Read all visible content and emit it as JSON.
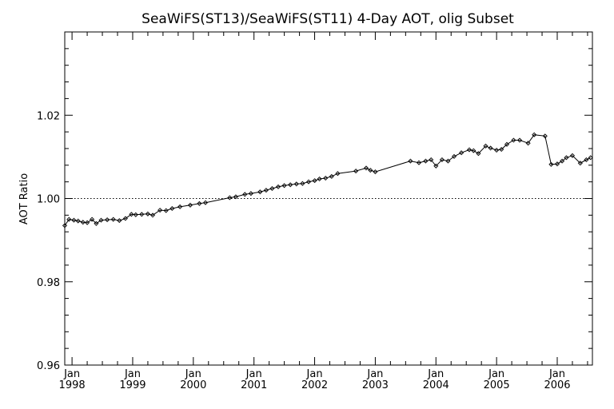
{
  "chart_data": {
    "type": "line",
    "title": "SeaWiFS(ST13)/SeaWiFS(ST11) 4-Day AOT, olig Subset",
    "ylabel": "AOT Ratio",
    "xlabel": "",
    "xlim": [
      1997.88,
      2006.58
    ],
    "ylim": [
      0.96,
      1.04
    ],
    "yticks": [
      0.96,
      0.98,
      1.0,
      1.02
    ],
    "ytick_labels": [
      "0.96",
      "0.98",
      "1.00",
      "1.02"
    ],
    "reference_line": 1.0,
    "xticks": [
      {
        "x": 1998,
        "month": "Jan",
        "year": "1998"
      },
      {
        "x": 1999,
        "month": "Jan",
        "year": "1999"
      },
      {
        "x": 2000,
        "month": "Jan",
        "year": "2000"
      },
      {
        "x": 2001,
        "month": "Jan",
        "year": "2001"
      },
      {
        "x": 2002,
        "month": "Jan",
        "year": "2002"
      },
      {
        "x": 2003,
        "month": "Jan",
        "year": "2003"
      },
      {
        "x": 2004,
        "month": "Jan",
        "year": "2004"
      },
      {
        "x": 2005,
        "month": "Jan",
        "year": "2005"
      },
      {
        "x": 2006,
        "month": "Jan",
        "year": "2006"
      }
    ],
    "series": [
      {
        "x": [
          1997.88,
          1997.95,
          1998.03,
          1998.1,
          1998.18,
          1998.25,
          1998.33,
          1998.4,
          1998.48,
          1998.58,
          1998.68,
          1998.78,
          1998.88,
          1998.98,
          1999.05,
          1999.15,
          1999.25,
          1999.33,
          1999.45,
          1999.55,
          1999.65,
          1999.78,
          1999.95,
          2000.1,
          2000.2,
          2000.6,
          2000.7,
          2000.85,
          2000.95,
          2001.1,
          2001.2,
          2001.3,
          2001.4,
          2001.5,
          2001.6,
          2001.7,
          2001.8,
          2001.9,
          2002.0,
          2002.08,
          2002.18,
          2002.28,
          2002.38,
          2002.68,
          2002.85,
          2002.92,
          2003.0,
          2003.58,
          2003.72,
          2003.83,
          2003.92,
          2004.0,
          2004.1,
          2004.2,
          2004.3,
          2004.42,
          2004.55,
          2004.62,
          2004.7,
          2004.82,
          2004.9,
          2005.0,
          2005.08,
          2005.17,
          2005.28,
          2005.38,
          2005.52,
          2005.62,
          2005.8,
          2005.9,
          2006.0,
          2006.08,
          2006.15,
          2006.25,
          2006.38,
          2006.48,
          2006.55
        ],
        "y": [
          0.9935,
          0.995,
          0.9948,
          0.9946,
          0.9943,
          0.9942,
          0.995,
          0.994,
          0.9948,
          0.9949,
          0.995,
          0.9947,
          0.9952,
          0.9962,
          0.9961,
          0.9962,
          0.9963,
          0.996,
          0.9972,
          0.9971,
          0.9976,
          0.998,
          0.9984,
          0.9988,
          0.999,
          1.0002,
          1.0004,
          1.001,
          1.0012,
          1.0016,
          1.002,
          1.0024,
          1.0028,
          1.0031,
          1.0033,
          1.0035,
          1.0036,
          1.004,
          1.0043,
          1.0047,
          1.0049,
          1.0053,
          1.006,
          1.0066,
          1.0073,
          1.0068,
          1.0064,
          1.009,
          1.0086,
          1.009,
          1.0093,
          1.0078,
          1.0093,
          1.009,
          1.0101,
          1.011,
          1.0117,
          1.0115,
          1.0108,
          1.0126,
          1.0121,
          1.0116,
          1.0118,
          1.013,
          1.014,
          1.014,
          1.0133,
          1.0153,
          1.015,
          1.0082,
          1.0083,
          1.009,
          1.0098,
          1.0103,
          1.0085,
          1.0093,
          1.0098
        ]
      }
    ]
  }
}
